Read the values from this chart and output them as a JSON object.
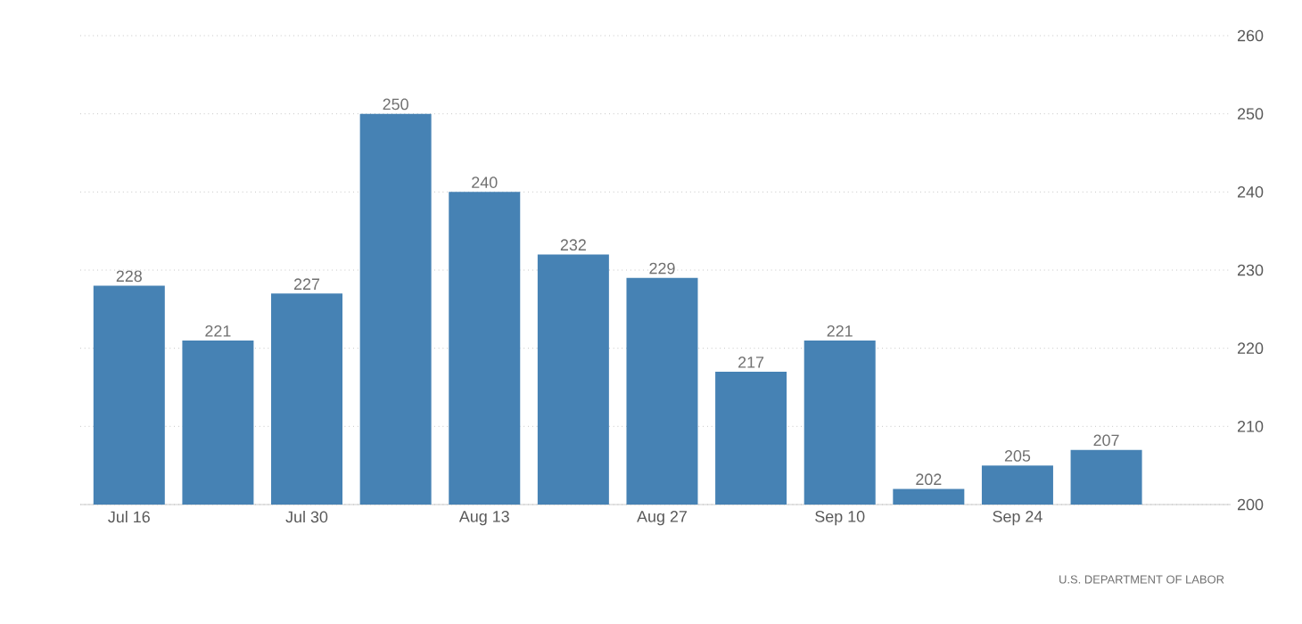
{
  "chart_data": {
    "type": "bar",
    "categories": [
      "Jul 16",
      null,
      "Jul 30",
      null,
      "Aug 13",
      null,
      "Aug 27",
      null,
      "Sep 10",
      null,
      "Sep 24",
      null
    ],
    "values": [
      228,
      221,
      227,
      250,
      240,
      232,
      229,
      217,
      221,
      202,
      205,
      207
    ],
    "color": "#4682b4",
    "ylim": [
      200,
      260
    ],
    "yticks": [
      200,
      210,
      220,
      230,
      240,
      250,
      260
    ],
    "grid": "y",
    "data_labels": true,
    "annotations": [
      "U.S. DEPARTMENT OF LABOR"
    ]
  }
}
